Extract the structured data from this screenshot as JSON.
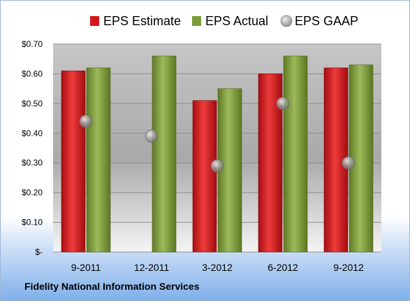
{
  "company": "Fidelity National Information Services",
  "legend": [
    {
      "label": "EPS Estimate",
      "color": "#d4161d",
      "shape": "square"
    },
    {
      "label": "EPS Actual",
      "color": "#7c9b3b",
      "shape": "square"
    },
    {
      "label": "EPS GAAP",
      "color": "#a9b3bc",
      "shape": "circle"
    }
  ],
  "chart_data": {
    "type": "bar",
    "categories": [
      "9-2011",
      "12-2011",
      "3-2012",
      "6-2012",
      "9-2012"
    ],
    "series": [
      {
        "name": "EPS Estimate",
        "type": "bar",
        "color": "#d4161d",
        "values": [
          0.61,
          null,
          0.51,
          0.6,
          0.62
        ]
      },
      {
        "name": "EPS Actual",
        "type": "bar",
        "color": "#7c9b3b",
        "values": [
          0.62,
          0.66,
          0.55,
          0.66,
          0.63
        ]
      },
      {
        "name": "EPS GAAP",
        "type": "scatter",
        "color": "#a9b3bc",
        "values": [
          0.44,
          0.39,
          0.29,
          0.5,
          0.3
        ]
      }
    ],
    "ylim": [
      0,
      0.7
    ],
    "yticks": [
      0,
      0.1,
      0.2,
      0.3,
      0.4,
      0.5,
      0.6,
      0.7
    ],
    "ytick_labels": [
      "$-",
      "$0.10",
      "$0.20",
      "$0.30",
      "$0.40",
      "$0.50",
      "$0.60",
      "$0.70"
    ],
    "grid": true,
    "legend_position": "top"
  }
}
